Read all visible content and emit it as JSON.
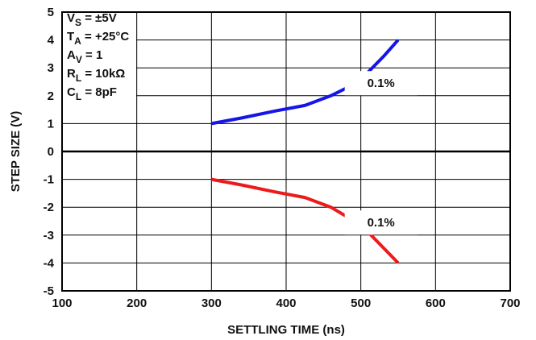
{
  "chart_data": {
    "type": "line",
    "title": "",
    "xlabel": "SETTLING TIME (ns)",
    "ylabel": "STEP SIZE (V)",
    "xlim": [
      100,
      700
    ],
    "ylim": [
      -5,
      5
    ],
    "x_ticks": [
      100,
      200,
      300,
      400,
      500,
      600,
      700
    ],
    "y_ticks": [
      5,
      4,
      3,
      2,
      1,
      0,
      -1,
      -2,
      -3,
      -4,
      -5
    ],
    "grid": true,
    "series": [
      {
        "color": "#1515e8",
        "points": [
          [
            300,
            1
          ],
          [
            340,
            1.2
          ],
          [
            385,
            1.45
          ],
          [
            425,
            1.65
          ],
          [
            460,
            2.0
          ],
          [
            490,
            2.4
          ],
          [
            510,
            2.85
          ],
          [
            530,
            3.4
          ],
          [
            550,
            4
          ]
        ]
      },
      {
        "color": "#ee1a1a",
        "points": [
          [
            300,
            -1
          ],
          [
            340,
            -1.2
          ],
          [
            385,
            -1.45
          ],
          [
            425,
            -1.65
          ],
          [
            460,
            -2.0
          ],
          [
            485,
            -2.4
          ],
          [
            510,
            -2.9
          ],
          [
            530,
            -3.45
          ],
          [
            550,
            -4
          ]
        ]
      }
    ],
    "annotations": [
      {
        "text": "0.1%",
        "x": 527,
        "y": 2.45
      },
      {
        "text": "0.1%",
        "x": 527,
        "y": -2.55
      }
    ],
    "conditions": [
      {
        "main": "V",
        "sub": "S",
        "rest": " = ±5V"
      },
      {
        "main": "T",
        "sub": "A",
        "rest": " = +25°C"
      },
      {
        "main": "A",
        "sub": "V",
        "rest": " = 1"
      },
      {
        "main": "R",
        "sub": "L",
        "rest": " = 10kΩ"
      },
      {
        "main": "C",
        "sub": "L",
        "rest": " = 8pF"
      }
    ]
  }
}
